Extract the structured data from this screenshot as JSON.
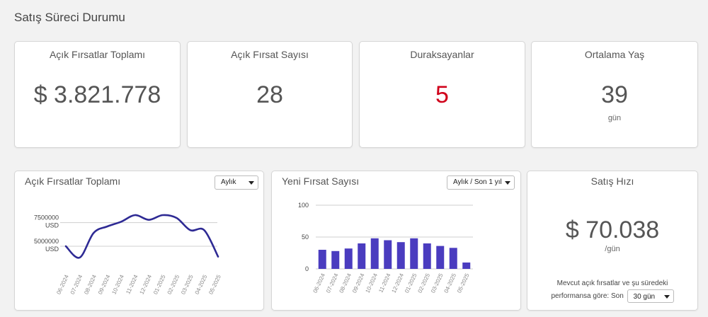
{
  "page": {
    "title": "Satış Süreci Durumu"
  },
  "kpis": [
    {
      "title": "Açık Fırsatlar Toplamı",
      "value": "$ 3.821.778",
      "unit": ""
    },
    {
      "title": "Açık Fırsat Sayısı",
      "value": "28",
      "unit": ""
    },
    {
      "title": "Duraksayanlar",
      "value": "5",
      "unit": ""
    },
    {
      "title": "Ortalama Yaş",
      "value": "39",
      "unit": "gün"
    }
  ],
  "colors": {
    "alert": "#d0021b",
    "line": "#2e2a94",
    "bar": "#4a3cbf"
  },
  "line_card": {
    "title": "Açık Fırsatlar Toplamı",
    "period": "Aylık"
  },
  "bar_card": {
    "title": "Yeni Fırsat Sayısı",
    "period": "Aylık / Son 1 yıl"
  },
  "speed_card": {
    "title": "Satış Hızı",
    "value": "$ 70.038",
    "unit": "/gün",
    "note_line1": "Mevcut açık fırsatlar ve şu süredeki",
    "note_line2": "performansa göre: Son",
    "period": "30 gün"
  },
  "chart_data": [
    {
      "type": "line",
      "title": "Açık Fırsatlar Toplamı",
      "categories": [
        "06-2024",
        "07-2024",
        "08-2024",
        "09-2024",
        "10-2024",
        "11-2024",
        "12-2024",
        "01-2025",
        "02-2025",
        "03-2025",
        "04-2025",
        "05-2025"
      ],
      "values": [
        5000000,
        3800000,
        6400000,
        7100000,
        7600000,
        8300000,
        7800000,
        8300000,
        8000000,
        6700000,
        6700000,
        3900000
      ],
      "yticks": [
        {
          "value": 7500000,
          "line1": "7500000",
          "line2": "USD"
        },
        {
          "value": 5000000,
          "line1": "5000000",
          "line2": "USD"
        }
      ],
      "ylim": [
        2600000,
        9800000
      ],
      "grid": true
    },
    {
      "type": "bar",
      "title": "Yeni Fırsat Sayısı",
      "categories": [
        "06-2024",
        "07-2024",
        "08-2024",
        "09-2024",
        "10-2024",
        "11-2024",
        "12-2024",
        "01-2025",
        "02-2025",
        "03-2025",
        "04-2025",
        "05-2025"
      ],
      "values": [
        30,
        28,
        32,
        40,
        48,
        45,
        42,
        48,
        40,
        36,
        33,
        10
      ],
      "yticks": [
        "0",
        "50",
        "100"
      ],
      "ylim": [
        0,
        100
      ],
      "grid": true
    }
  ]
}
